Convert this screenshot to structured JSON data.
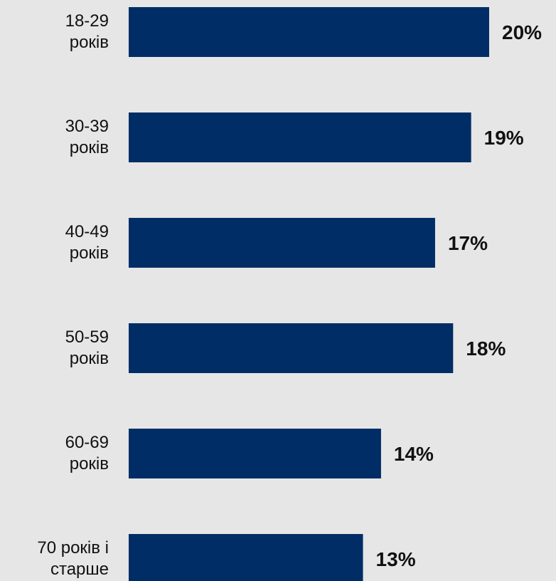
{
  "chart_data": {
    "type": "bar",
    "orientation": "horizontal",
    "title": "",
    "xlabel": "",
    "ylabel": "",
    "categories": [
      [
        "18-29",
        "років"
      ],
      [
        "30-39",
        "років"
      ],
      [
        "40-49",
        "років"
      ],
      [
        "50-59",
        "років"
      ],
      [
        "60-69",
        "років"
      ],
      [
        "70 років і",
        "старше"
      ]
    ],
    "values": [
      20,
      19,
      17,
      18,
      14,
      13
    ],
    "value_labels": [
      "20%",
      "19%",
      "17%",
      "18%",
      "14%",
      "13%"
    ],
    "xlim": [
      0,
      20
    ],
    "grid": false,
    "legend": "none",
    "colors": {
      "bar": "#002d66",
      "background": "#e6e6e6",
      "text": "#111111"
    }
  }
}
